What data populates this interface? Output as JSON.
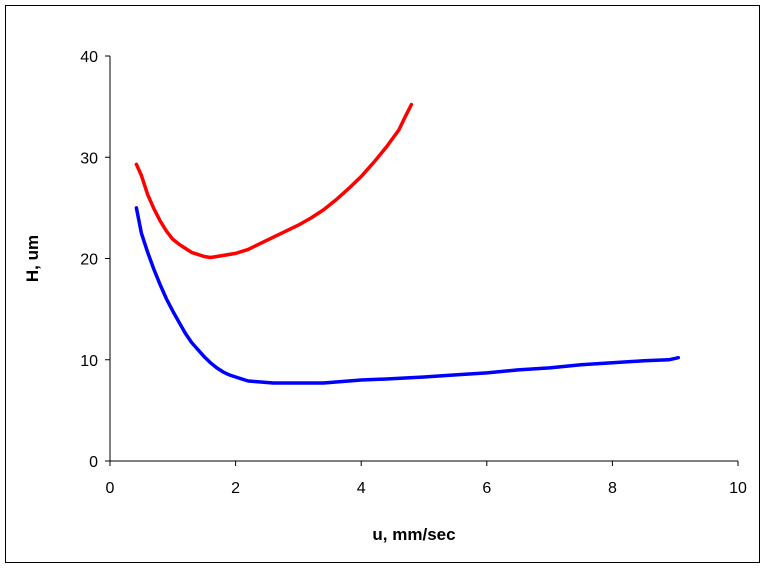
{
  "chart_data": {
    "type": "line",
    "title": "",
    "xlabel": "u, mm/sec",
    "ylabel": "H, um",
    "xlim": [
      0,
      10
    ],
    "ylim": [
      0,
      40
    ],
    "xticks": [
      0,
      2,
      4,
      6,
      8,
      10
    ],
    "yticks": [
      0,
      10,
      20,
      30,
      40
    ],
    "grid": false,
    "legend": "none",
    "series": [
      {
        "color": "#ff0000",
        "points": [
          [
            0.42,
            29.3
          ],
          [
            0.5,
            28.2
          ],
          [
            0.6,
            26.3
          ],
          [
            0.7,
            24.9
          ],
          [
            0.8,
            23.7
          ],
          [
            0.9,
            22.7
          ],
          [
            1.0,
            21.9
          ],
          [
            1.1,
            21.4
          ],
          [
            1.2,
            21.0
          ],
          [
            1.3,
            20.6
          ],
          [
            1.4,
            20.4
          ],
          [
            1.5,
            20.2
          ],
          [
            1.6,
            20.1
          ],
          [
            1.7,
            20.2
          ],
          [
            1.8,
            20.3
          ],
          [
            2.0,
            20.5
          ],
          [
            2.2,
            20.9
          ],
          [
            2.4,
            21.5
          ],
          [
            2.6,
            22.1
          ],
          [
            2.8,
            22.7
          ],
          [
            3.0,
            23.3
          ],
          [
            3.2,
            24.0
          ],
          [
            3.4,
            24.8
          ],
          [
            3.6,
            25.8
          ],
          [
            3.8,
            26.9
          ],
          [
            4.0,
            28.1
          ],
          [
            4.2,
            29.5
          ],
          [
            4.4,
            31.0
          ],
          [
            4.6,
            32.7
          ],
          [
            4.7,
            34.0
          ],
          [
            4.8,
            35.2
          ]
        ]
      },
      {
        "color": "#0000ff",
        "points": [
          [
            0.42,
            25.0
          ],
          [
            0.5,
            22.5
          ],
          [
            0.6,
            20.6
          ],
          [
            0.7,
            18.9
          ],
          [
            0.8,
            17.4
          ],
          [
            0.9,
            16.0
          ],
          [
            1.0,
            14.8
          ],
          [
            1.1,
            13.7
          ],
          [
            1.2,
            12.6
          ],
          [
            1.3,
            11.7
          ],
          [
            1.4,
            11.0
          ],
          [
            1.5,
            10.3
          ],
          [
            1.6,
            9.7
          ],
          [
            1.7,
            9.2
          ],
          [
            1.8,
            8.8
          ],
          [
            1.9,
            8.5
          ],
          [
            2.0,
            8.3
          ],
          [
            2.2,
            7.9
          ],
          [
            2.4,
            7.8
          ],
          [
            2.6,
            7.7
          ],
          [
            3.0,
            7.7
          ],
          [
            3.4,
            7.7
          ],
          [
            3.6,
            7.8
          ],
          [
            4.0,
            8.0
          ],
          [
            4.4,
            8.1
          ],
          [
            5.0,
            8.3
          ],
          [
            5.5,
            8.5
          ],
          [
            6.0,
            8.7
          ],
          [
            6.5,
            9.0
          ],
          [
            7.0,
            9.2
          ],
          [
            7.5,
            9.5
          ],
          [
            8.0,
            9.7
          ],
          [
            8.5,
            9.9
          ],
          [
            8.9,
            10.0
          ],
          [
            9.05,
            10.2
          ]
        ]
      }
    ]
  }
}
